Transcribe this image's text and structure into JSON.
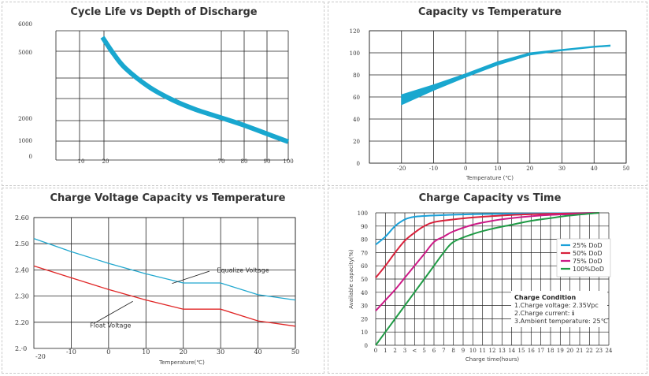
{
  "chart_data": [
    {
      "type": "line",
      "title": "Cycle Life vs Depth of Discharge",
      "xlabel": "",
      "ylabel": "",
      "xlim": [
        0,
        100
      ],
      "ylim": [
        0,
        6000
      ],
      "x_ticks": [
        "10",
        "20",
        "70",
        "80",
        "90",
        "100"
      ],
      "y_ticks": [
        "6000",
        "5000",
        "2000",
        "1000",
        "0"
      ],
      "series": [
        {
          "values": [
            [
              20,
              5700
            ],
            [
              25,
              4900
            ],
            [
              30,
              4250
            ],
            [
              40,
              3400
            ],
            [
              50,
              2800
            ],
            [
              60,
              2350
            ],
            [
              70,
              2000
            ],
            [
              80,
              1650
            ],
            [
              90,
              1250
            ],
            [
              100,
              850
            ]
          ]
        }
      ],
      "color": "#19a7cf",
      "grid": true
    },
    {
      "type": "area",
      "title": "Capacity vs Temperature",
      "xlabel": "Temperature (℃)",
      "ylabel": "",
      "xlim": [
        -30,
        50
      ],
      "ylim": [
        0,
        120
      ],
      "x_ticks": [
        "-20",
        "-10",
        "0",
        "10",
        "20",
        "30",
        "40",
        "50"
      ],
      "y_ticks": [
        "120",
        "100",
        "80",
        "60",
        "40",
        "20",
        "0"
      ],
      "series": [
        {
          "upper": [
            [
              -20,
              62
            ],
            [
              -10,
              71
            ],
            [
              0,
              81
            ],
            [
              10,
              92
            ],
            [
              20,
              100
            ],
            [
              30,
              103
            ],
            [
              40,
              106
            ],
            [
              45,
              107
            ]
          ],
          "lower": [
            [
              -20,
              53
            ],
            [
              -10,
              66
            ],
            [
              0,
              78
            ],
            [
              10,
              89
            ],
            [
              20,
              98
            ],
            [
              30,
              102
            ],
            [
              40,
              105
            ],
            [
              45,
              106
            ]
          ]
        }
      ],
      "color": "#19a7cf",
      "grid": true
    },
    {
      "type": "line",
      "title": "Charge Voltage Capacity vs Temperature",
      "xlabel": "Temperature(℃)",
      "ylabel": "",
      "xlim": [
        -20,
        50
      ],
      "ylim": [
        2.1,
        2.6
      ],
      "x_ticks": [
        "-20",
        "-10",
        "0",
        "10",
        "20",
        "30",
        "40",
        "50"
      ],
      "y_ticks": [
        "2.60",
        "2.50",
        "2.40",
        "2.30",
        "2.20",
        "2.·0"
      ],
      "series": [
        {
          "name": "Equalize Voltage",
          "color": "#22a8cf",
          "values": [
            [
              -20,
              2.52
            ],
            [
              -10,
              2.47
            ],
            [
              0,
              2.425
            ],
            [
              10,
              2.385
            ],
            [
              20,
              2.35
            ],
            [
              30,
              2.35
            ],
            [
              40,
              2.305
            ],
            [
              50,
              2.285
            ]
          ]
        },
        {
          "name": "Float Voltage",
          "color": "#e02626",
          "values": [
            [
              -20,
              2.415
            ],
            [
              -10,
              2.37
            ],
            [
              0,
              2.325
            ],
            [
              10,
              2.285
            ],
            [
              20,
              2.25
            ],
            [
              30,
              2.25
            ],
            [
              40,
              2.205
            ],
            [
              50,
              2.185
            ]
          ]
        }
      ],
      "grid": true
    },
    {
      "type": "line",
      "title": "Charge Capacity vs Time",
      "xlabel": "Charge time(hours)",
      "ylabel": "Available capacity(%)",
      "xlim": [
        0,
        24
      ],
      "ylim": [
        0,
        100
      ],
      "x_ticks": [
        "0",
        "1",
        "2",
        "3",
        "<",
        "5",
        "6",
        "7",
        "8",
        "9",
        "10",
        "11",
        "12",
        "13",
        "14",
        "15",
        "16",
        "17",
        "18",
        "19",
        "20",
        "21",
        "22",
        "23",
        "24"
      ],
      "y_ticks": [
        "100",
        "90",
        "80",
        "70",
        "60",
        "50",
        "40",
        "30",
        "20",
        "10",
        "0"
      ],
      "series": [
        {
          "name": "25% DoD",
          "color": "#1aa0d8",
          "values": [
            [
              0,
              76
            ],
            [
              1,
              82
            ],
            [
              2,
              90
            ],
            [
              3,
              95
            ],
            [
              4,
              97
            ],
            [
              6,
              98
            ],
            [
              10,
              99
            ],
            [
              16,
              99.5
            ],
            [
              23,
              100
            ]
          ]
        },
        {
          "name": "50% DoD",
          "color": "#d8203a",
          "values": [
            [
              0,
              51
            ],
            [
              1,
              60
            ],
            [
              2,
              70
            ],
            [
              3,
              79
            ],
            [
              4,
              85
            ],
            [
              5,
              90
            ],
            [
              6,
              93
            ],
            [
              8,
              95
            ],
            [
              10,
              96.5
            ],
            [
              13,
              98
            ],
            [
              16,
              99
            ],
            [
              20,
              99.5
            ],
            [
              23,
              100
            ]
          ]
        },
        {
          "name": "75% DoD",
          "color": "#cc1a86",
          "values": [
            [
              0,
              26
            ],
            [
              1,
              34
            ],
            [
              2,
              42
            ],
            [
              3,
              51
            ],
            [
              4,
              60
            ],
            [
              5,
              69
            ],
            [
              6,
              78
            ],
            [
              7,
              82
            ],
            [
              8,
              86
            ],
            [
              10,
              91
            ],
            [
              12,
              94
            ],
            [
              14,
              96
            ],
            [
              17,
              98
            ],
            [
              20,
              99
            ],
            [
              23,
              100
            ]
          ]
        },
        {
          "name": "100%DoD",
          "color": "#1f9a45",
          "values": [
            [
              0,
              0
            ],
            [
              1,
              10
            ],
            [
              2,
              20
            ],
            [
              3,
              30
            ],
            [
              4,
              40
            ],
            [
              5,
              50
            ],
            [
              6,
              60
            ],
            [
              7,
              70
            ],
            [
              8,
              78
            ],
            [
              10,
              84
            ],
            [
              12,
              88
            ],
            [
              14,
              91
            ],
            [
              16,
              94
            ],
            [
              18,
              96
            ],
            [
              20,
              98
            ],
            [
              23,
              100
            ]
          ]
        }
      ],
      "legend": "right",
      "grid": true,
      "note_title": "Charge Condition",
      "note_lines": [
        "1.Charge voltage: 2.35Vpc",
        "2.Charge current: ℹ",
        "3.Ambient temperature: 25℃"
      ]
    }
  ]
}
